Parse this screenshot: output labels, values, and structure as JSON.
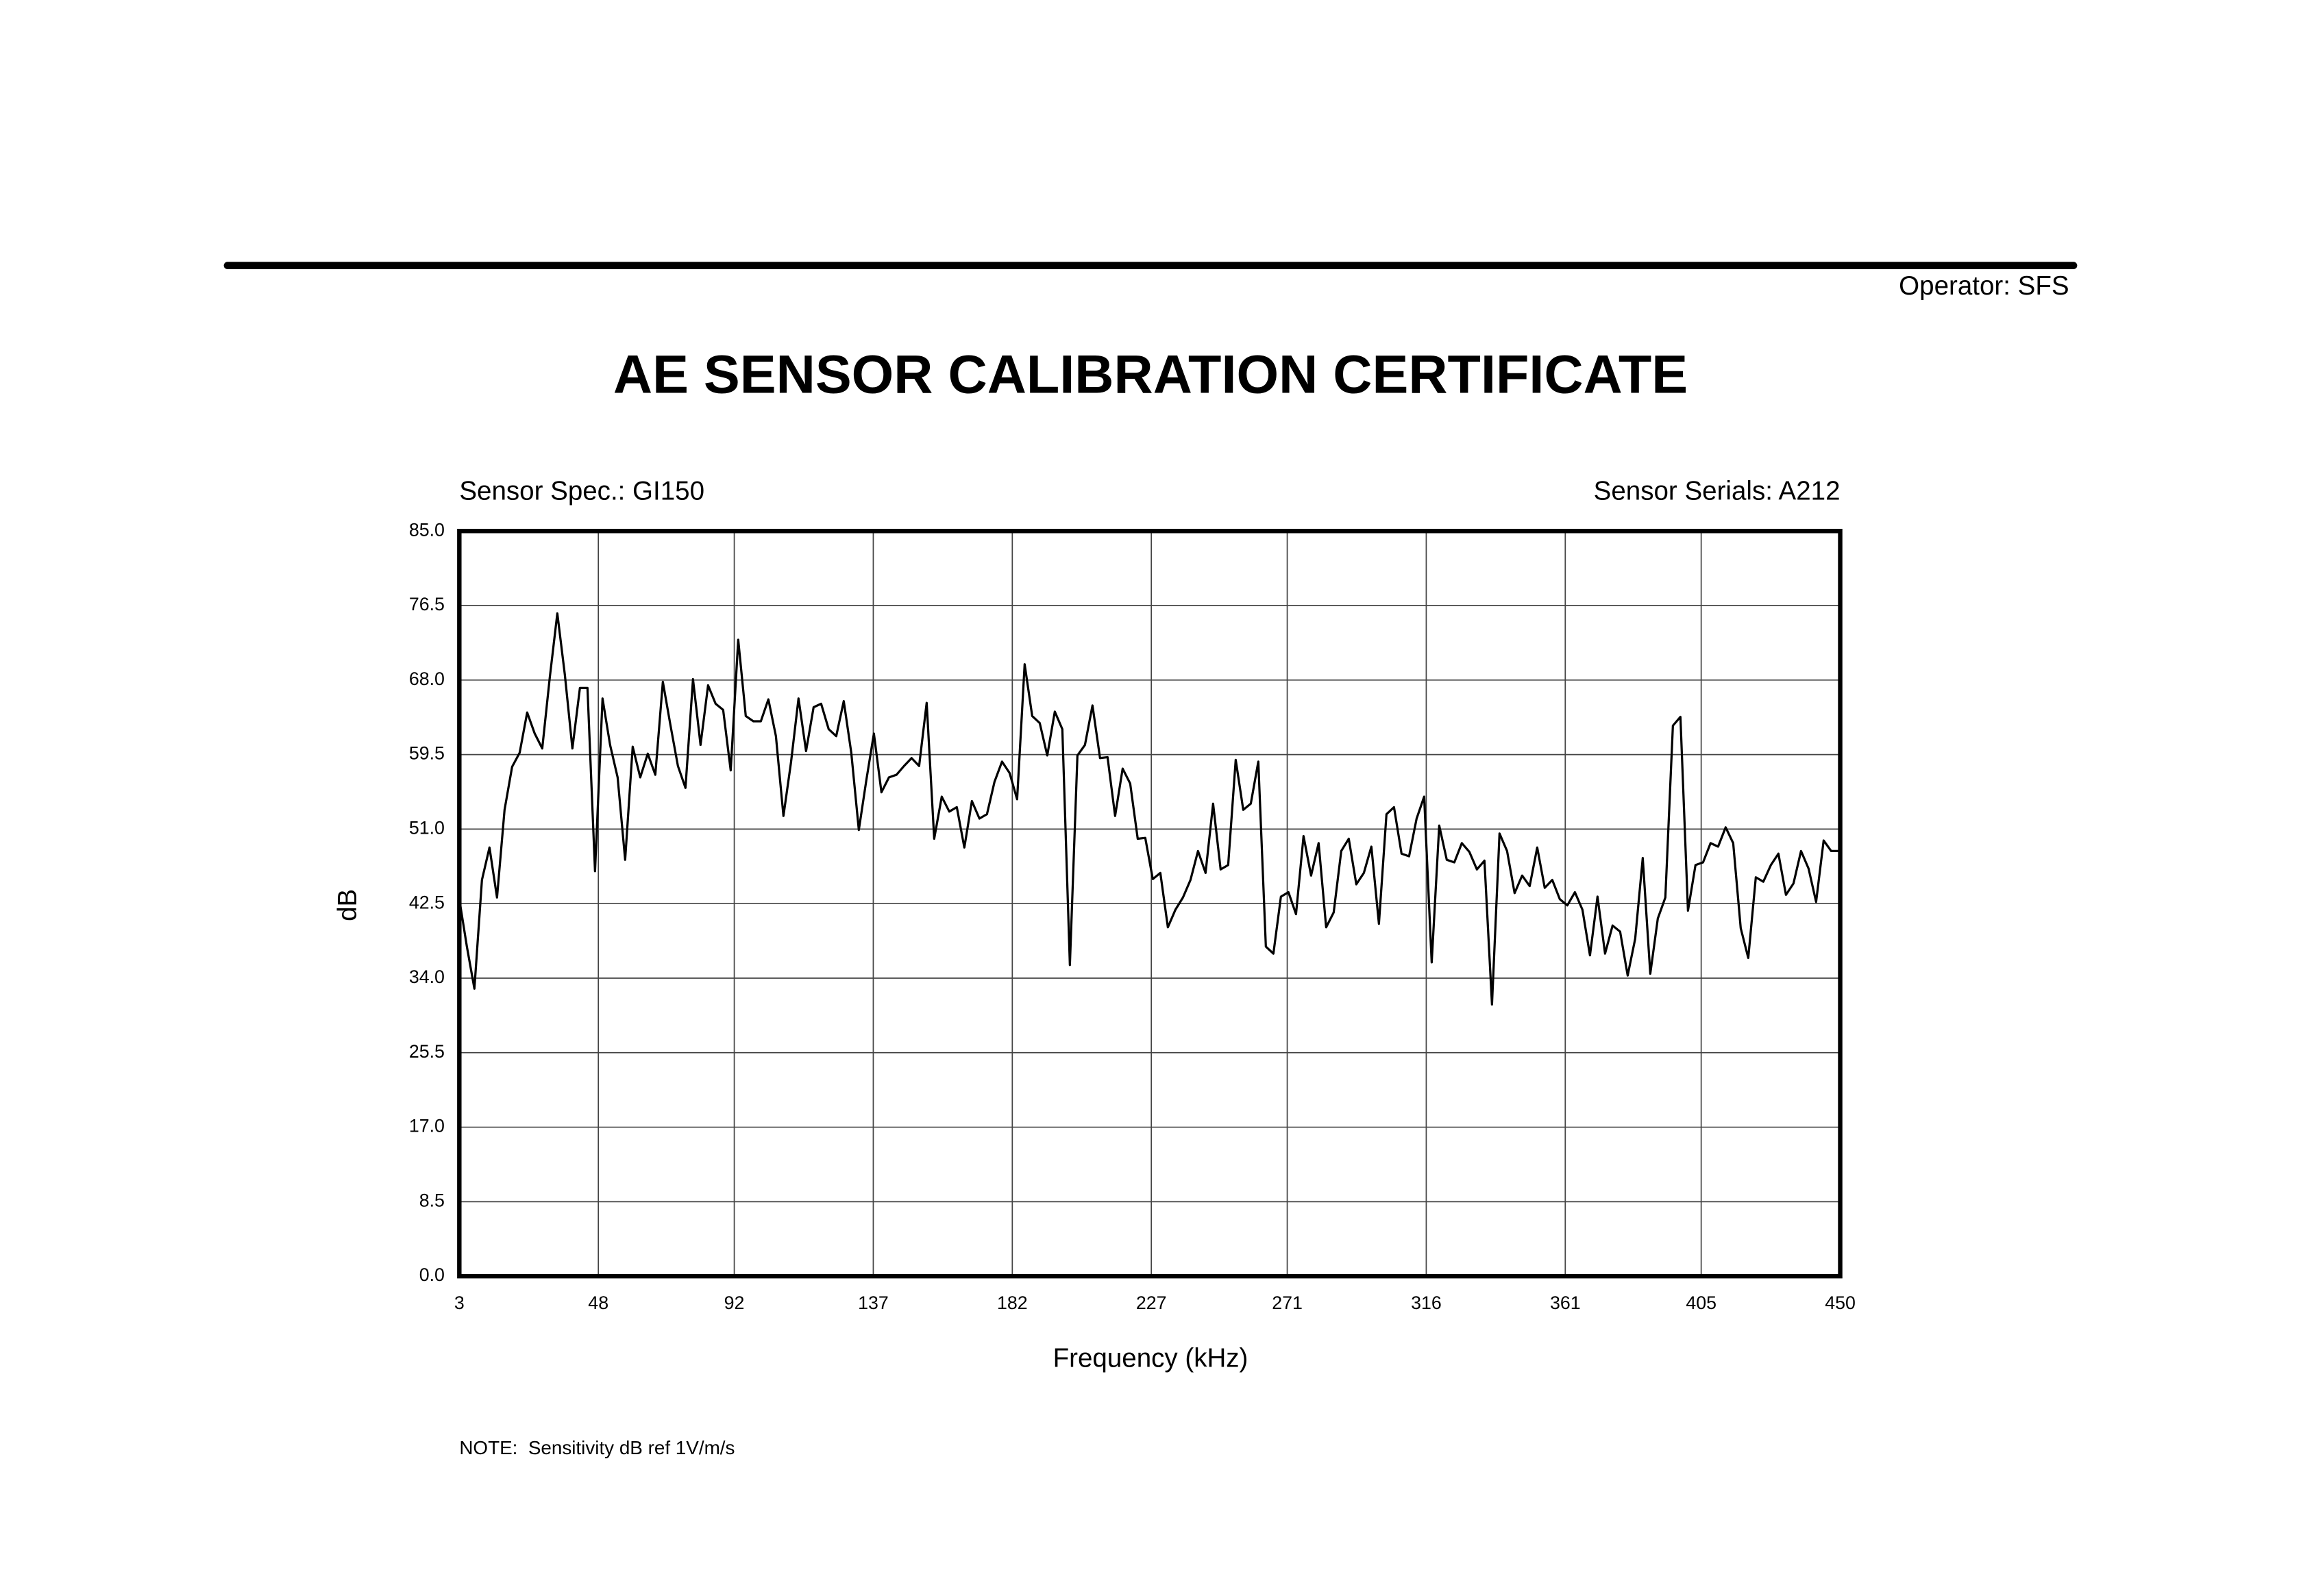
{
  "header": {
    "operator": "Operator: SFS",
    "title": "AE SENSOR CALIBRATION CERTIFICATE"
  },
  "chart_data": {
    "type": "line",
    "sensor_spec": "Sensor Spec.: GI150",
    "sensor_serials": "Sensor Serials: A212",
    "x_label": "Frequency (kHz)",
    "y_label": "dB",
    "note": "NOTE:  Sensitivity dB ref 1V/m/s",
    "grid": true,
    "color": "#000000",
    "xlim": [
      3,
      450
    ],
    "xticks": [
      3,
      48,
      92,
      137,
      182,
      227,
      271,
      316,
      361,
      405,
      450
    ],
    "ylim": [
      0,
      85
    ],
    "yticks": [
      {
        "value": 0,
        "label": "0.0"
      },
      {
        "value": 8.5,
        "label": "8.5"
      },
      {
        "value": 17,
        "label": "17.0"
      },
      {
        "value": 25.5,
        "label": "25.5"
      },
      {
        "value": 34,
        "label": "34.0"
      },
      {
        "value": 42.5,
        "label": "42.5"
      },
      {
        "value": 51,
        "label": "51.0"
      },
      {
        "value": 59.5,
        "label": "59.5"
      },
      {
        "value": 68,
        "label": "68.0"
      },
      {
        "value": 76.5,
        "label": "76.5"
      },
      {
        "value": 85,
        "label": "85.0"
      }
    ],
    "x": [
      3,
      5.44,
      7.88,
      10.32,
      12.76,
      15.2,
      17.64,
      20.08,
      22.52,
      24.96,
      27.4,
      29.84,
      32.28,
      34.72,
      37.16,
      39.6,
      42.04,
      44.48,
      46.92,
      49.36,
      51.8,
      54.24,
      56.68,
      59.12,
      61.56,
      64,
      66.44,
      68.88,
      71.32,
      73.76,
      76.2,
      78.64,
      81.08,
      83.52,
      85.96,
      88.4,
      90.84,
      93.28,
      95.72,
      98.16,
      100.6,
      103.04,
      105.48,
      107.92,
      110.36,
      112.8,
      115.24,
      117.68,
      120.12,
      122.56,
      125,
      127.44,
      129.88,
      132.32,
      134.76,
      137.2,
      139.64,
      142.08,
      144.52,
      146.96,
      149.4,
      151.84,
      154.28,
      156.72,
      159.16,
      161.6,
      164.04,
      166.48,
      168.92,
      171.36,
      173.8,
      176.24,
      178.68,
      181.12,
      183.56,
      186,
      188.44,
      190.88,
      193.32,
      195.76,
      198.2,
      200.64,
      203.08,
      205.52,
      207.96,
      210.4,
      212.84,
      215.28,
      217.72,
      220.16,
      222.6,
      225.04,
      227.48,
      229.92,
      232.36,
      234.8,
      237.24,
      239.68,
      242.12,
      244.56,
      247,
      249.44,
      251.88,
      254.32,
      256.76,
      259.2,
      261.64,
      264.08,
      266.52,
      268.96,
      271.4,
      273.84,
      276.28,
      278.72,
      281.16,
      283.6,
      286.04,
      288.48,
      290.92,
      293.36,
      295.8,
      298.24,
      300.68,
      303.12,
      305.56,
      308,
      310.44,
      312.88,
      315.32,
      317.76,
      320.2,
      322.64,
      325.08,
      327.52,
      329.96,
      332.4,
      334.84,
      337.28,
      339.72,
      342.16,
      344.6,
      347.04,
      349.48,
      351.92,
      354.36,
      356.8,
      359.24,
      361.68,
      364.12,
      366.56,
      369,
      371.44,
      373.88,
      376.32,
      378.76,
      381.2,
      383.64,
      386.08,
      388.52,
      390.96,
      393.4,
      395.84,
      398.28,
      400.72,
      403.16,
      405.6,
      408.04,
      410.48,
      412.92,
      415.36,
      417.8,
      420.24,
      422.68,
      425.12,
      427.56,
      430,
      432.44,
      434.88,
      437.32,
      439.76,
      442.2,
      444.64,
      447.08,
      449.52
    ],
    "values": [
      43,
      37.6,
      32.8,
      45.2,
      48.9,
      43.2,
      53.2,
      58.1,
      59.7,
      64.3,
      61.9,
      60.2,
      68.3,
      75.6,
      68.6,
      60.2,
      67.1,
      67.1,
      46.2,
      65.9,
      60.6,
      56.9,
      47.5,
      60.4,
      56.9,
      59.6,
      57.2,
      67.8,
      62.9,
      58.2,
      55.7,
      68.1,
      60.6,
      67.4,
      65.3,
      64.6,
      57.7,
      72.6,
      63.9,
      63.3,
      63.3,
      65.8,
      61.6,
      52.5,
      58.6,
      65.9,
      59.9,
      64.9,
      65.3,
      62.4,
      61.6,
      65.6,
      59.7,
      50.9,
      56.6,
      61.9,
      55.2,
      56.9,
      57.2,
      58.2,
      59.1,
      58.2,
      65.4,
      49.9,
      54.7,
      53,
      53.5,
      48.9,
      54.2,
      52.2,
      52.7,
      56.4,
      58.7,
      57.4,
      54.4,
      69.8,
      63.9,
      63.1,
      59.4,
      64.4,
      62.4,
      35.5,
      59.4,
      60.6,
      65.1,
      59.1,
      59.2,
      52.5,
      57.9,
      56.2,
      49.9,
      50,
      45.3,
      46,
      39.8,
      41.8,
      43.2,
      45.2,
      48.5,
      46,
      53.9,
      46.4,
      46.9,
      58.9,
      53.2,
      53.9,
      58.7,
      37.6,
      36.8,
      43.3,
      43.8,
      41.3,
      50.2,
      45.7,
      49.4,
      39.8,
      41.5,
      48.5,
      49.9,
      44.7,
      46,
      49,
      40.2,
      52.7,
      53.5,
      48.2,
      47.9,
      52.2,
      54.7,
      35.8,
      51.4,
      47.5,
      47.2,
      49.4,
      48.4,
      46.4,
      47.4,
      31,
      50.5,
      48.5,
      43.7,
      45.7,
      44.5,
      48.9,
      44.3,
      45.2,
      43,
      42.3,
      43.8,
      41.8,
      36.6,
      43.3,
      36.8,
      40,
      39.3,
      34.3,
      38.5,
      47.7,
      34.5,
      40.8,
      43.2,
      62.8,
      63.8,
      41.7,
      46.9,
      47.2,
      49.4,
      49,
      51.2,
      49.4,
      39.7,
      36.3,
      45.5,
      45,
      46.9,
      48.2,
      43.5,
      44.8,
      48.5,
      46.5,
      42.7,
      49.7,
      48.5,
      48.5
    ]
  }
}
